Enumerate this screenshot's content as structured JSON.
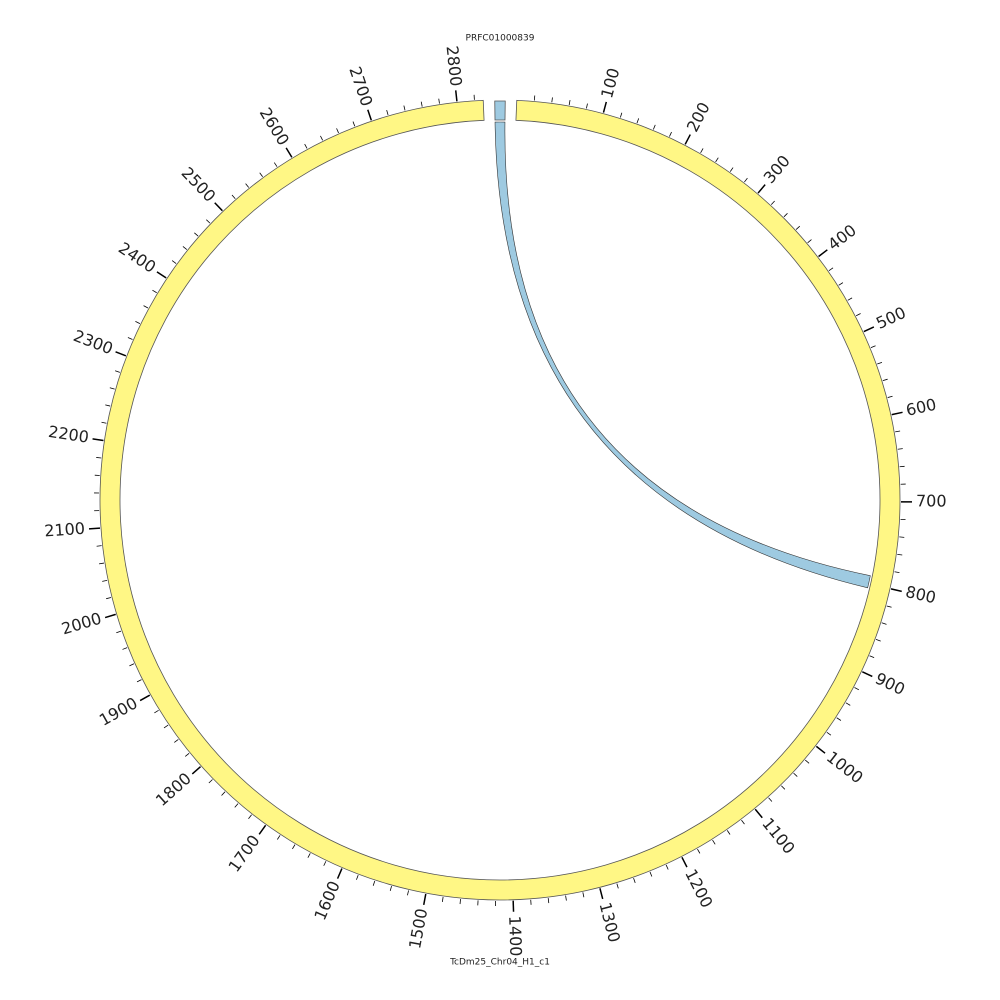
{
  "chart_data": {
    "type": "circos",
    "segments": [
      {
        "name": "PRFC01000839",
        "length": 12,
        "color": "#9ecae1"
      },
      {
        "name": "TcDm25_Chr04_H1_c1",
        "length": 2830,
        "color": "#fff785"
      }
    ],
    "ticks": [
      100,
      200,
      300,
      400,
      500,
      600,
      700,
      800,
      900,
      1000,
      1100,
      1200,
      1300,
      1400,
      1500,
      1600,
      1700,
      1800,
      1900,
      2000,
      2100,
      2200,
      2300,
      2400,
      2500,
      2600,
      2700,
      2800
    ],
    "minor_tick_interval": 20,
    "links": [
      {
        "source": 0,
        "source_start": 0,
        "source_end": 12,
        "target": 1,
        "target_start": 790,
        "target_end": 805,
        "color": "#9ecae1"
      }
    ]
  }
}
